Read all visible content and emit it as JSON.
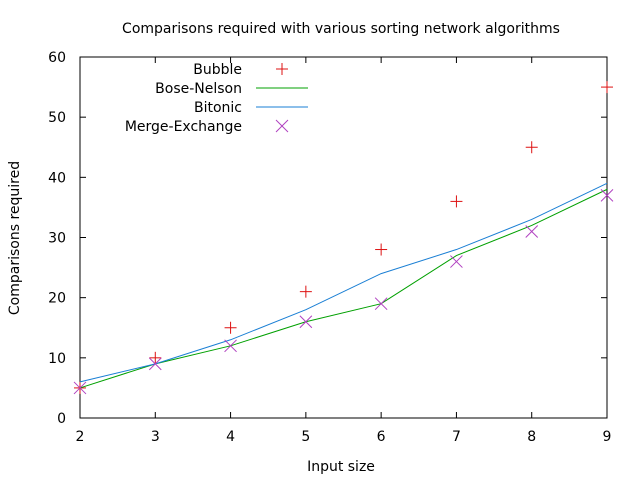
{
  "chart_data": {
    "type": "line",
    "title": "Comparisons required with various sorting network algorithms",
    "xlabel": "Input size",
    "ylabel": "Comparisons required",
    "xlim": [
      2,
      9
    ],
    "ylim": [
      0,
      60
    ],
    "xticks": [
      2,
      3,
      4,
      5,
      6,
      7,
      8,
      9
    ],
    "yticks": [
      0,
      10,
      20,
      30,
      40,
      50,
      60
    ],
    "grid": false,
    "legend_position": "top-left",
    "x": [
      2,
      3,
      4,
      5,
      6,
      7,
      8,
      9
    ],
    "series": [
      {
        "name": "Bubble",
        "style": "points",
        "marker": "plus",
        "color": "#dd1111",
        "values": [
          5,
          10,
          15,
          21,
          28,
          36,
          45,
          55
        ]
      },
      {
        "name": "Bose-Nelson",
        "style": "line",
        "color": "#00a000",
        "values": [
          5,
          9,
          12,
          16,
          19,
          27,
          32,
          38
        ]
      },
      {
        "name": "Bitonic",
        "style": "line",
        "color": "#1a7fd4",
        "values": [
          6,
          9,
          13,
          18,
          24,
          28,
          33,
          39
        ]
      },
      {
        "name": "Merge-Exchange",
        "style": "points",
        "marker": "cross",
        "color": "#b040c0",
        "values": [
          5,
          9,
          12,
          16,
          19,
          26,
          31,
          37
        ]
      }
    ]
  }
}
